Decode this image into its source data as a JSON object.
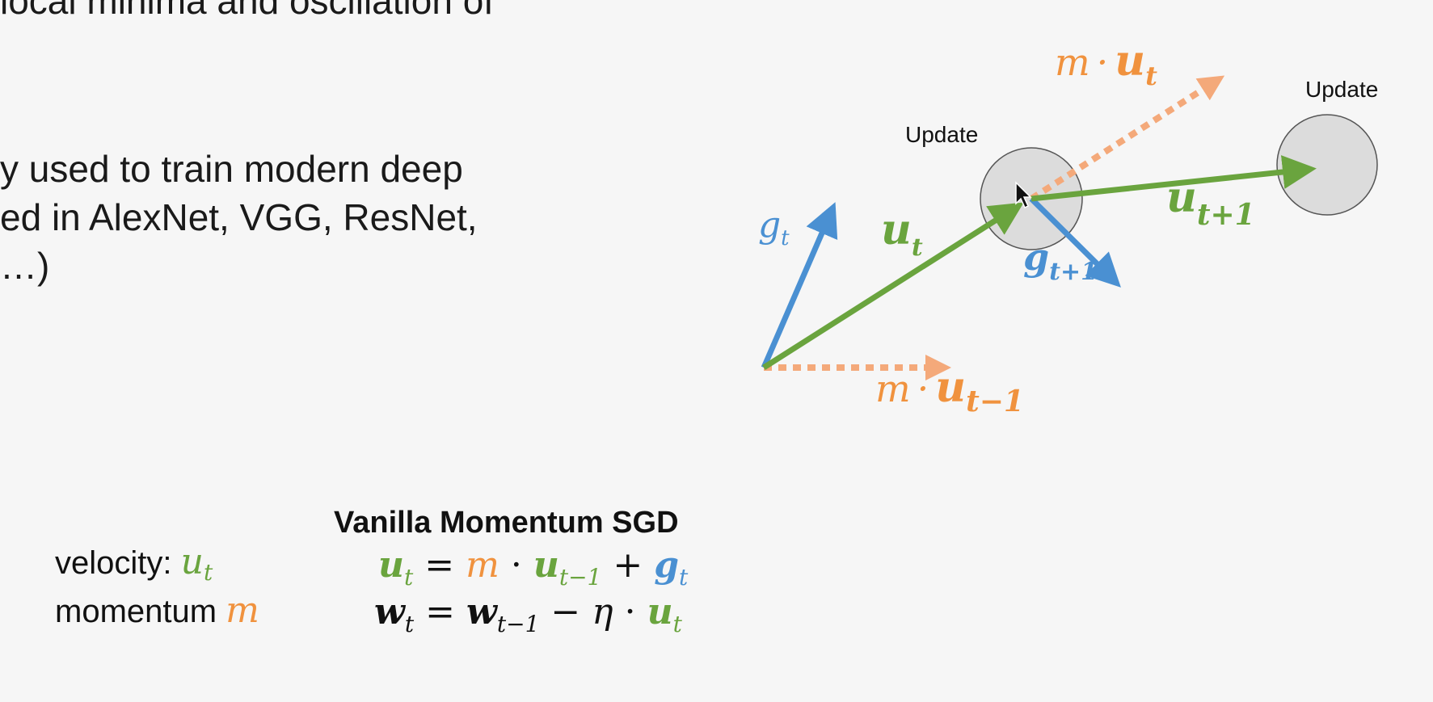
{
  "slide_text": {
    "line_top": "local minima and oscillation of",
    "line_1": "y used to train modern deep",
    "line_2": "ed in AlexNet, VGG, ResNet,",
    "line_3": " …)"
  },
  "diagram": {
    "update_label_1": "Update",
    "update_label_2": "Update",
    "g_t": {
      "base": "g",
      "sub": "t"
    },
    "u_t": {
      "base": "u",
      "sub": "t"
    },
    "g_t_plus_1": {
      "base": "g",
      "sub": "t+1"
    },
    "u_t_plus_1": {
      "base": "u",
      "sub": "t+1"
    },
    "m_u_t": {
      "m": "m",
      "dot": "·",
      "base": "u",
      "sub": "t"
    },
    "m_u_t_minus_1": {
      "m": "m",
      "dot": "·",
      "base": "u",
      "sub": "t−1"
    }
  },
  "formulas": {
    "title": "Vanilla Momentum SGD",
    "velocity_label": "velocity: ",
    "velocity_symbol": "u",
    "velocity_sub": "t",
    "momentum_label": "momentum ",
    "momentum_symbol": "m",
    "eq1": {
      "lhs": "u",
      "lhs_sub": "t",
      "eq": " = ",
      "m": "m",
      "dot": " · ",
      "u": "u",
      "u_sub": "t−1",
      "plus": " + ",
      "g": "g",
      "g_sub": "t"
    },
    "eq2": {
      "lhs": "w",
      "lhs_sub": "t",
      "eq": " = ",
      "w": "w",
      "w_sub": "t−1",
      "minus": " − ",
      "eta": "η",
      "dot": " · ",
      "u": "u",
      "u_sub": "t"
    }
  },
  "colors": {
    "green": "#6aa43e",
    "orange": "#f0923e",
    "blue": "#4a90d2",
    "circle_fill": "#dcdcdc",
    "circle_stroke": "#555555"
  }
}
